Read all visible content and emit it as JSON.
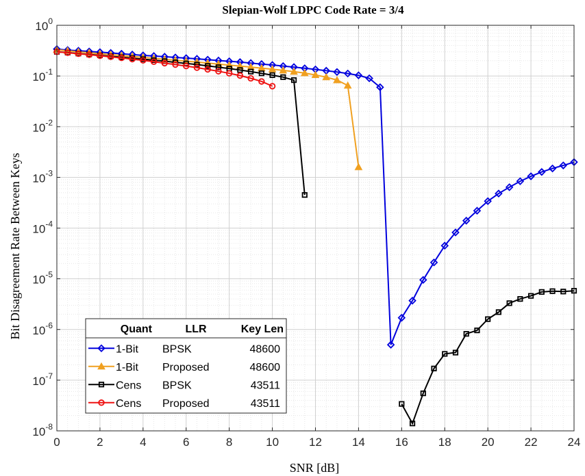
{
  "chart_data": {
    "type": "line",
    "title": "Slepian-Wolf LDPC Code Rate = 3/4",
    "xlabel": "SNR [dB]",
    "ylabel": "Bit Disagreement Rate Between Keys",
    "xlim": [
      0,
      24
    ],
    "ylim": [
      1e-08,
      1
    ],
    "yscale": "log",
    "grid": true,
    "x_ticks": [
      "0",
      "2",
      "4",
      "6",
      "8",
      "10",
      "12",
      "14",
      "16",
      "18",
      "20",
      "22",
      "24"
    ],
    "y_ticks": [
      {
        "base": "10",
        "exp": "0"
      },
      {
        "base": "10",
        "exp": "-1"
      },
      {
        "base": "10",
        "exp": "-2"
      },
      {
        "base": "10",
        "exp": "-3"
      },
      {
        "base": "10",
        "exp": "-4"
      },
      {
        "base": "10",
        "exp": "-5"
      },
      {
        "base": "10",
        "exp": "-6"
      },
      {
        "base": "10",
        "exp": "-7"
      },
      {
        "base": "10",
        "exp": "-8"
      }
    ],
    "legend": {
      "position": "bottom-left",
      "headers": [
        "Quant",
        "LLR",
        "Key Len"
      ],
      "rows": [
        {
          "quant": "1-Bit",
          "llr": "BPSK",
          "key_len": "48600"
        },
        {
          "quant": "1-Bit",
          "llr": "Proposed",
          "key_len": "48600"
        },
        {
          "quant": "Cens",
          "llr": "BPSK",
          "key_len": "43511"
        },
        {
          "quant": "Cens",
          "llr": "Proposed",
          "key_len": "43511"
        }
      ]
    },
    "series": [
      {
        "color": "#0000dd",
        "marker": "diamond",
        "segments": [
          {
            "x": [
              0,
              0.5,
              1,
              1.5,
              2,
              2.5,
              3,
              3.5,
              4,
              4.5,
              5,
              5.5,
              6,
              6.5,
              7,
              7.5,
              8,
              8.5,
              9,
              9.5,
              10,
              10.5,
              11,
              11.5,
              12,
              12.5,
              13,
              13.5,
              14,
              14.5,
              15,
              15.5,
              16,
              16.5,
              17,
              17.5,
              18,
              18.5,
              19,
              19.5,
              20,
              20.5,
              21,
              21.5,
              22,
              22.5,
              23,
              23.5,
              24
            ],
            "y": [
              0.34,
              0.325,
              0.315,
              0.305,
              0.295,
              0.285,
              0.275,
              0.265,
              0.255,
              0.248,
              0.24,
              0.232,
              0.225,
              0.218,
              0.21,
              0.202,
              0.195,
              0.188,
              0.18,
              0.172,
              0.165,
              0.157,
              0.15,
              0.142,
              0.135,
              0.127,
              0.12,
              0.112,
              0.103,
              0.09,
              0.06,
              5e-07,
              1.7e-06,
              3.7e-06,
              9.5e-06,
              2.1e-05,
              4.5e-05,
              8.2e-05,
              0.00014,
              0.00022,
              0.00034,
              0.00048,
              0.00064,
              0.00084,
              0.00105,
              0.00128,
              0.0015,
              0.00172,
              0.002
            ]
          }
        ]
      },
      {
        "color": "#f0a020",
        "marker": "triangle",
        "segments": [
          {
            "x": [
              0,
              0.5,
              1,
              1.5,
              2,
              2.5,
              3,
              3.5,
              4,
              4.5,
              5,
              5.5,
              6,
              6.5,
              7,
              7.5,
              8,
              8.5,
              9,
              9.5,
              10,
              10.5,
              11,
              11.5,
              12,
              12.5,
              13,
              13.5,
              14
            ],
            "y": [
              0.33,
              0.315,
              0.3,
              0.288,
              0.275,
              0.265,
              0.253,
              0.243,
              0.233,
              0.223,
              0.213,
              0.205,
              0.196,
              0.188,
              0.18,
              0.172,
              0.164,
              0.157,
              0.15,
              0.143,
              0.136,
              0.129,
              0.122,
              0.114,
              0.105,
              0.095,
              0.083,
              0.065,
              0.0016
            ]
          }
        ]
      },
      {
        "color": "#000000",
        "marker": "square",
        "segments": [
          {
            "x": [
              0,
              0.5,
              1,
              1.5,
              2,
              2.5,
              3,
              3.5,
              4,
              4.5,
              5,
              5.5,
              6,
              6.5,
              7,
              7.5,
              8,
              8.5,
              9,
              9.5,
              10,
              10.5,
              11,
              11.5
            ],
            "y": [
              0.3,
              0.29,
              0.278,
              0.267,
              0.256,
              0.245,
              0.235,
              0.225,
              0.215,
              0.205,
              0.196,
              0.186,
              0.177,
              0.168,
              0.158,
              0.149,
              0.14,
              0.131,
              0.122,
              0.113,
              0.104,
              0.095,
              0.083,
              0.00045
            ]
          },
          {
            "x": [
              16,
              16.5,
              17,
              17.5,
              18,
              18.5,
              19,
              19.5,
              20,
              20.5,
              21,
              21.5,
              22,
              22.5,
              23,
              23.5,
              24
            ],
            "y": [
              3.4e-08,
              1.4e-08,
              5.5e-08,
              1.7e-07,
              3.3e-07,
              3.5e-07,
              8.2e-07,
              9.6e-07,
              1.6e-06,
              2.2e-06,
              3.3e-06,
              4e-06,
              4.6e-06,
              5.5e-06,
              5.7e-06,
              5.6e-06,
              5.8e-06
            ]
          }
        ]
      },
      {
        "color": "#ee1111",
        "marker": "circle",
        "segments": [
          {
            "x": [
              0,
              0.5,
              1,
              1.5,
              2,
              2.5,
              3,
              3.5,
              4,
              4.5,
              5,
              5.5,
              6,
              6.5,
              7,
              7.5,
              8,
              8.5,
              9,
              9.5,
              10
            ],
            "y": [
              0.3,
              0.288,
              0.275,
              0.263,
              0.251,
              0.239,
              0.227,
              0.215,
              0.203,
              0.191,
              0.179,
              0.168,
              0.157,
              0.146,
              0.135,
              0.124,
              0.113,
              0.102,
              0.09,
              0.078,
              0.063
            ]
          }
        ]
      }
    ]
  }
}
